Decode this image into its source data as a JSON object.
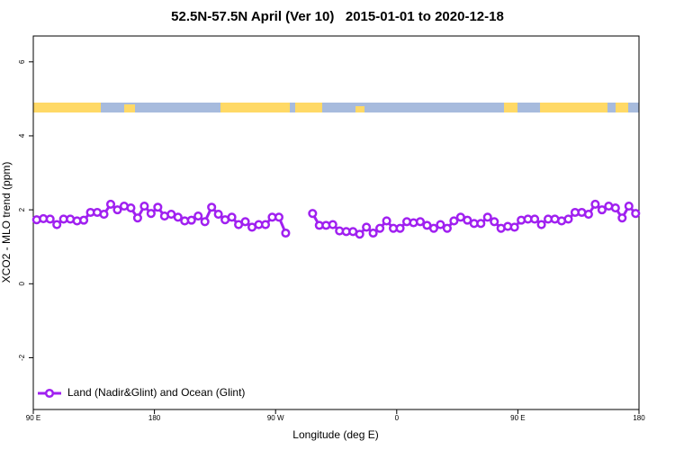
{
  "chart_data": {
    "type": "line",
    "title": "52.5N-57.5N April (Ver 10)   2015-01-01 to 2020-12-18",
    "x_label": "Longitude (deg E)",
    "y_label": "XCO2 - MLO trend (ppm)",
    "xlim": [
      90,
      540
    ],
    "ylim": [
      -3.4,
      6.7
    ],
    "xticks": [
      {
        "value": 90,
        "label": "90 E"
      },
      {
        "value": 180,
        "label": "180"
      },
      {
        "value": 270,
        "label": "90 W"
      },
      {
        "value": 360,
        "label": "0"
      },
      {
        "value": 450,
        "label": "90 E"
      },
      {
        "value": 540,
        "label": "180"
      }
    ],
    "yticks": [
      -2,
      0,
      2,
      4,
      6
    ],
    "x": [
      92.5,
      97.5,
      102.5,
      107.5,
      112.5,
      117.5,
      122.5,
      127.5,
      132.5,
      137.5,
      142.5,
      147.5,
      152.5,
      157.5,
      162.5,
      167.5,
      172.5,
      177.5,
      182.5,
      187.5,
      192.5,
      197.5,
      202.5,
      207.5,
      212.5,
      217.5,
      222.5,
      227.5,
      232.5,
      237.5,
      242.5,
      247.5,
      252.5,
      257.5,
      262.5,
      267.5,
      272.5,
      277.5,
      282.5,
      287.5,
      292.5,
      297.5,
      302.5,
      307.5,
      312.5,
      317.5,
      322.5,
      327.5,
      332.5,
      337.5,
      342.5,
      347.5,
      352.5,
      357.5,
      362.5,
      367.5,
      372.5,
      377.5,
      382.5,
      387.5,
      392.5,
      397.5,
      402.5,
      407.5,
      412.5,
      417.5,
      422.5,
      427.5,
      432.5,
      437.5,
      442.5,
      447.5,
      452.5,
      457.5,
      462.5,
      467.5,
      472.5,
      477.5,
      482.5,
      487.5,
      492.5,
      497.5,
      502.5,
      507.5,
      512.5,
      517.5,
      522.5,
      527.5,
      532.5,
      537.5
    ],
    "series": [
      {
        "name": "Land (Nadir&Glint) and Ocean (Glint)",
        "color": "#a020f0",
        "values": [
          1.73,
          1.76,
          1.75,
          1.6,
          1.75,
          1.75,
          1.7,
          1.72,
          1.93,
          1.93,
          1.88,
          2.15,
          2.0,
          2.1,
          2.05,
          1.78,
          2.1,
          1.9,
          2.07,
          1.83,
          1.88,
          1.8,
          1.7,
          1.72,
          1.83,
          1.68,
          2.07,
          1.88,
          1.73,
          1.8,
          1.6,
          1.68,
          1.53,
          1.6,
          1.6,
          1.8,
          1.8,
          1.37,
          null,
          null,
          null,
          1.9,
          1.58,
          1.58,
          1.6,
          1.43,
          1.41,
          1.41,
          1.34,
          1.53,
          1.37,
          1.5,
          1.7,
          1.5,
          1.5,
          1.68,
          1.65,
          1.68,
          1.58,
          1.5,
          1.6,
          1.5,
          1.7,
          1.8,
          1.72,
          1.63,
          1.63,
          1.8,
          1.68,
          1.5,
          1.55,
          1.53,
          1.72,
          1.75,
          1.75,
          1.6,
          1.75,
          1.75,
          1.7,
          1.75,
          1.93,
          1.93,
          1.88,
          2.15,
          2.0,
          2.1,
          2.05,
          1.78,
          2.1,
          1.9
        ]
      }
    ],
    "legend": "bottom-left"
  }
}
